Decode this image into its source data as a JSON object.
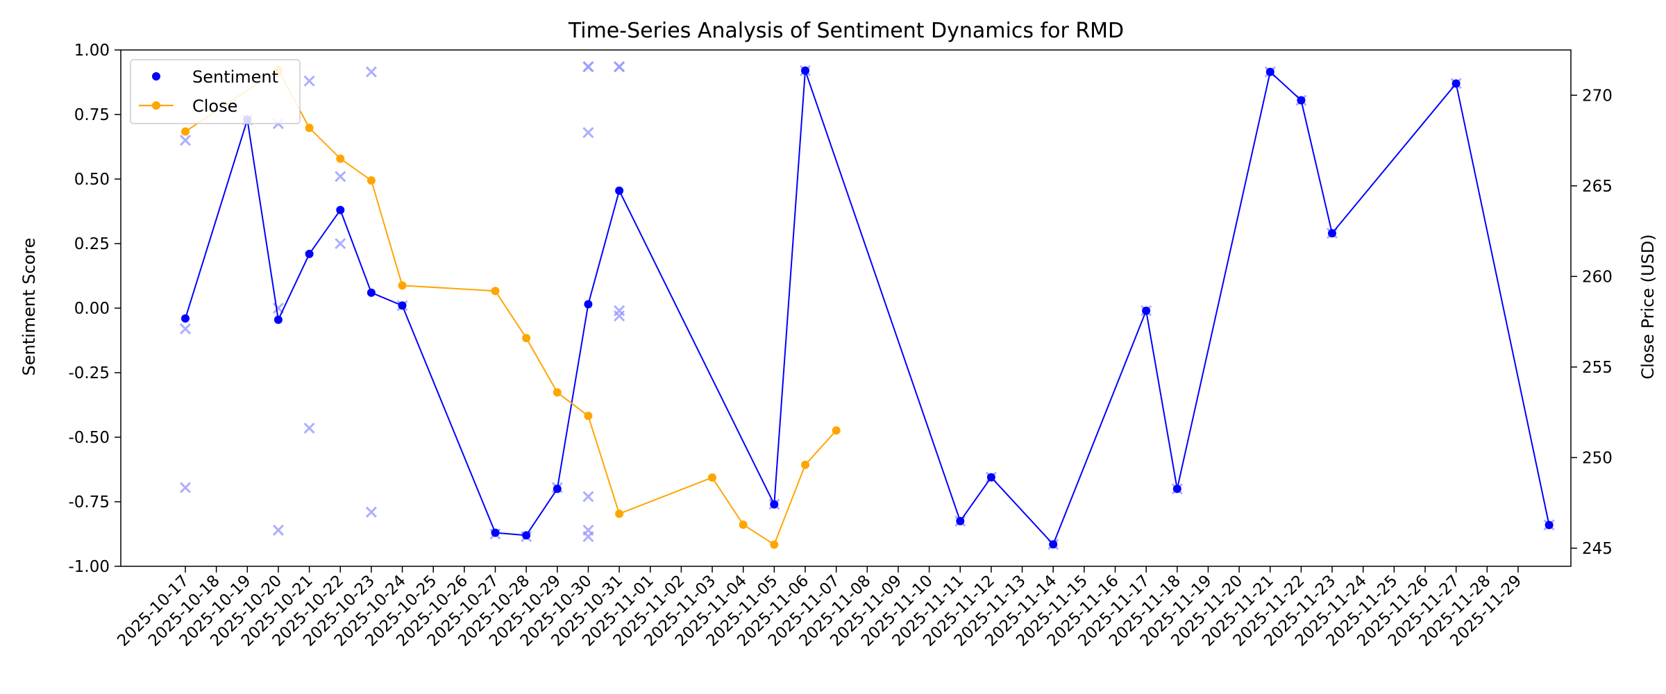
{
  "chart_data": {
    "type": "line",
    "title": "Time-Series Analysis of Sentiment Dynamics for RMD",
    "ylabel": "Sentiment Score",
    "y2label": "Close Price (USD)",
    "ylim": [
      -1.0,
      1.0
    ],
    "y2lim": [
      244,
      272.5
    ],
    "yticks": [
      "1.00",
      "0.75",
      "0.50",
      "0.25",
      "0.00",
      "-0.25",
      "-0.50",
      "-0.75",
      "-1.00"
    ],
    "y2ticks": [
      "270",
      "265",
      "260",
      "255",
      "250",
      "245"
    ],
    "dates": [
      "2025-10-17",
      "2025-10-18",
      "2025-10-19",
      "2025-10-20",
      "2025-10-21",
      "2025-10-22",
      "2025-10-23",
      "2025-10-24",
      "2025-10-25",
      "2025-10-26",
      "2025-10-27",
      "2025-10-28",
      "2025-10-29",
      "2025-10-30",
      "2025-10-31",
      "2025-11-01",
      "2025-11-02",
      "2025-11-03",
      "2025-11-04",
      "2025-11-05",
      "2025-11-06",
      "2025-11-07",
      "2025-11-08",
      "2025-11-09",
      "2025-11-10",
      "2025-11-11",
      "2025-11-12",
      "2025-11-13",
      "2025-11-14",
      "2025-11-15",
      "2025-11-16",
      "2025-11-17",
      "2025-11-18",
      "2025-11-19",
      "2025-11-20",
      "2025-11-21",
      "2025-11-22",
      "2025-11-23",
      "2025-11-24",
      "2025-11-25",
      "2025-11-26",
      "2025-11-27",
      "2025-11-28",
      "2025-11-29"
    ],
    "legend": {
      "position": "upper-left",
      "entries": [
        "Sentiment",
        "Close"
      ]
    },
    "series": [
      {
        "name": "Sentiment",
        "axis": "left",
        "color": "#0000ff",
        "points": [
          [
            "2025-10-17",
            -0.04
          ],
          [
            "2025-10-19",
            0.73
          ],
          [
            "2025-10-20",
            -0.045
          ],
          [
            "2025-10-21",
            0.21
          ],
          [
            "2025-10-22",
            0.38
          ],
          [
            "2025-10-23",
            0.06
          ],
          [
            "2025-10-24",
            0.01
          ],
          [
            "2025-10-27",
            -0.87
          ],
          [
            "2025-10-28",
            -0.88
          ],
          [
            "2025-10-29",
            -0.7
          ],
          [
            "2025-10-30",
            0.015
          ],
          [
            "2025-10-31",
            0.455
          ],
          [
            "2025-11-05",
            -0.76
          ],
          [
            "2025-11-06",
            0.92
          ],
          [
            "2025-11-11",
            -0.825
          ],
          [
            "2025-11-12",
            -0.655
          ],
          [
            "2025-11-14",
            -0.915
          ],
          [
            "2025-11-17",
            -0.01
          ],
          [
            "2025-11-18",
            -0.7
          ],
          [
            "2025-11-21",
            0.915
          ],
          [
            "2025-11-22",
            0.805
          ],
          [
            "2025-11-23",
            0.29
          ],
          [
            "2025-11-27",
            0.87
          ],
          [
            "2025-11-30",
            -0.84
          ]
        ]
      },
      {
        "name": "Close",
        "axis": "right",
        "color": "#ffa500",
        "points": [
          [
            "2025-10-17",
            268.0
          ],
          [
            "2025-10-20",
            271.4
          ],
          [
            "2025-10-21",
            268.2
          ],
          [
            "2025-10-22",
            266.5
          ],
          [
            "2025-10-23",
            265.3
          ],
          [
            "2025-10-24",
            259.5
          ],
          [
            "2025-10-27",
            259.2
          ],
          [
            "2025-10-28",
            256.6
          ],
          [
            "2025-10-29",
            253.6
          ],
          [
            "2025-10-30",
            252.3
          ],
          [
            "2025-10-31",
            246.9
          ],
          [
            "2025-11-03",
            248.9
          ],
          [
            "2025-11-04",
            246.3
          ],
          [
            "2025-11-05",
            245.2
          ],
          [
            "2025-11-06",
            249.6
          ],
          [
            "2025-11-07",
            251.5
          ]
        ]
      }
    ],
    "raw_sentiment": {
      "color": "#9999ff",
      "marker": "x",
      "points": [
        [
          "2025-10-17",
          0.65
        ],
        [
          "2025-10-17",
          -0.08
        ],
        [
          "2025-10-17",
          -0.695
        ],
        [
          "2025-10-19",
          0.73
        ],
        [
          "2025-10-20",
          0.715
        ],
        [
          "2025-10-20",
          0.0
        ],
        [
          "2025-10-20",
          -0.86
        ],
        [
          "2025-10-21",
          0.88
        ],
        [
          "2025-10-21",
          -0.465
        ],
        [
          "2025-10-22",
          0.51
        ],
        [
          "2025-10-22",
          0.25
        ],
        [
          "2025-10-23",
          0.915
        ],
        [
          "2025-10-23",
          -0.79
        ],
        [
          "2025-10-24",
          0.01
        ],
        [
          "2025-10-27",
          -0.875
        ],
        [
          "2025-10-28",
          -0.885
        ],
        [
          "2025-10-29",
          -0.695
        ],
        [
          "2025-10-30",
          0.935
        ],
        [
          "2025-10-30",
          0.935
        ],
        [
          "2025-10-30",
          0.68
        ],
        [
          "2025-10-30",
          -0.73
        ],
        [
          "2025-10-30",
          -0.86
        ],
        [
          "2025-10-30",
          -0.885
        ],
        [
          "2025-10-31",
          0.935
        ],
        [
          "2025-10-31",
          0.935
        ],
        [
          "2025-10-31",
          -0.01
        ],
        [
          "2025-10-31",
          -0.03
        ],
        [
          "2025-11-05",
          -0.76
        ],
        [
          "2025-11-06",
          0.92
        ],
        [
          "2025-11-11",
          -0.825
        ],
        [
          "2025-11-12",
          -0.655
        ],
        [
          "2025-11-14",
          -0.915
        ],
        [
          "2025-11-17",
          -0.01
        ],
        [
          "2025-11-18",
          -0.7
        ],
        [
          "2025-11-21",
          0.915
        ],
        [
          "2025-11-22",
          0.805
        ],
        [
          "2025-11-23",
          0.29
        ],
        [
          "2025-11-27",
          0.87
        ],
        [
          "2025-11-30",
          -0.84
        ]
      ]
    }
  }
}
